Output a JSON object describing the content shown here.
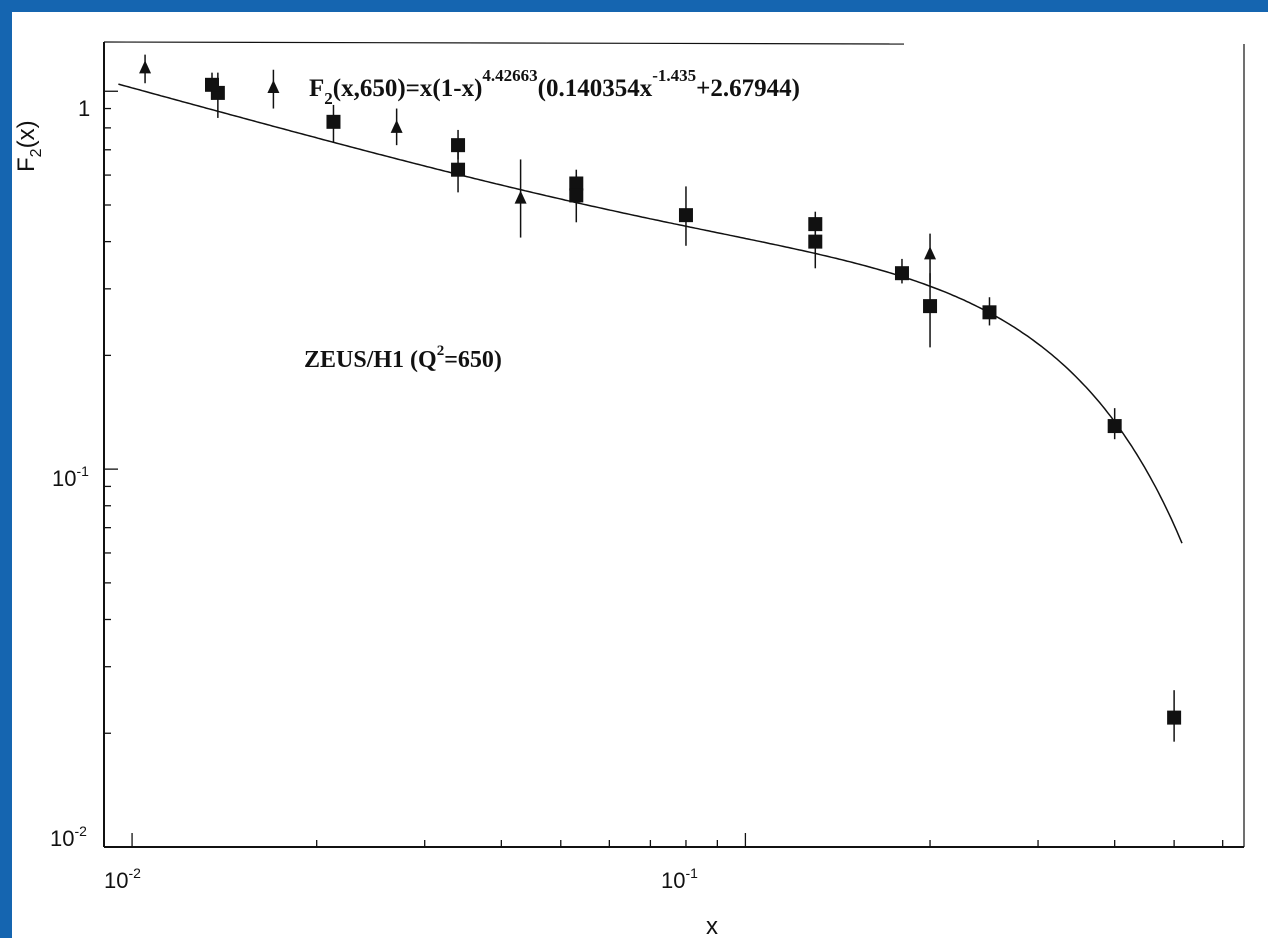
{
  "frame": {
    "background": "#1565b0",
    "slide_background": "#ffffff"
  },
  "chart_data": {
    "type": "scatter",
    "xscale": "log",
    "yscale": "log",
    "xlim": [
      0.009,
      0.65
    ],
    "ylim": [
      0.01,
      1.35
    ],
    "xlabel": "x",
    "ylabel": "F",
    "ylabel_sub": "2",
    "ylabel_tail": "(x)",
    "x_tick_labels": [
      {
        "value": 0.01,
        "base": "10",
        "exp": "-2"
      },
      {
        "value": 0.1,
        "base": "10",
        "exp": "-1"
      }
    ],
    "y_tick_labels": [
      {
        "value": 1,
        "base": "1",
        "exp": ""
      },
      {
        "value": 0.1,
        "base": "10",
        "exp": "-1"
      },
      {
        "value": 0.01,
        "base": "10",
        "exp": "-2"
      }
    ],
    "formula": {
      "lhs": "F",
      "lhs_sub": "2",
      "lhs_args": "(x,650)=x(1-x)",
      "exp1": "4.42663",
      "mid": "(0.140354x",
      "exp2": "-1.435",
      "end": "+2.67944)"
    },
    "annotation": {
      "pre": "ZEUS/H1 (Q",
      "sup": "2",
      "post": "=650)"
    },
    "fit": {
      "a": 4.42663,
      "b": 0.140354,
      "c": -1.435,
      "d": 2.67944
    },
    "series": [
      {
        "marker": "square",
        "points": [
          {
            "x": 0.0138,
            "y": 0.99,
            "lo": 0.85,
            "hi": 1.12
          },
          {
            "x": 0.0135,
            "y": 1.04,
            "lo": 0.95,
            "hi": 1.12
          },
          {
            "x": 0.0213,
            "y": 0.83,
            "lo": 0.73,
            "hi": 0.92
          },
          {
            "x": 0.034,
            "y": 0.72,
            "lo": 0.66,
            "hi": 0.79
          },
          {
            "x": 0.034,
            "y": 0.62,
            "lo": 0.54,
            "hi": 0.7
          },
          {
            "x": 0.053,
            "y": 0.57,
            "lo": 0.5,
            "hi": 0.62
          },
          {
            "x": 0.053,
            "y": 0.53,
            "lo": 0.45,
            "hi": 0.6
          },
          {
            "x": 0.08,
            "y": 0.47,
            "lo": 0.39,
            "hi": 0.56
          },
          {
            "x": 0.13,
            "y": 0.445,
            "lo": 0.41,
            "hi": 0.48
          },
          {
            "x": 0.13,
            "y": 0.4,
            "lo": 0.34,
            "hi": 0.46
          },
          {
            "x": 0.18,
            "y": 0.33,
            "lo": 0.31,
            "hi": 0.36
          },
          {
            "x": 0.2,
            "y": 0.27,
            "lo": 0.21,
            "hi": 0.33
          },
          {
            "x": 0.25,
            "y": 0.26,
            "lo": 0.24,
            "hi": 0.285
          },
          {
            "x": 0.4,
            "y": 0.13,
            "lo": 0.12,
            "hi": 0.145
          },
          {
            "x": 0.5,
            "y": 0.022,
            "lo": 0.019,
            "hi": 0.026
          }
        ]
      },
      {
        "marker": "triangle",
        "points": [
          {
            "x": 0.0105,
            "y": 1.15,
            "lo": 1.05,
            "hi": 1.25
          },
          {
            "x": 0.017,
            "y": 1.02,
            "lo": 0.9,
            "hi": 1.14
          },
          {
            "x": 0.027,
            "y": 0.8,
            "lo": 0.72,
            "hi": 0.9
          },
          {
            "x": 0.043,
            "y": 0.52,
            "lo": 0.41,
            "hi": 0.66
          },
          {
            "x": 0.2,
            "y": 0.37,
            "lo": 0.31,
            "hi": 0.42
          }
        ]
      }
    ]
  }
}
